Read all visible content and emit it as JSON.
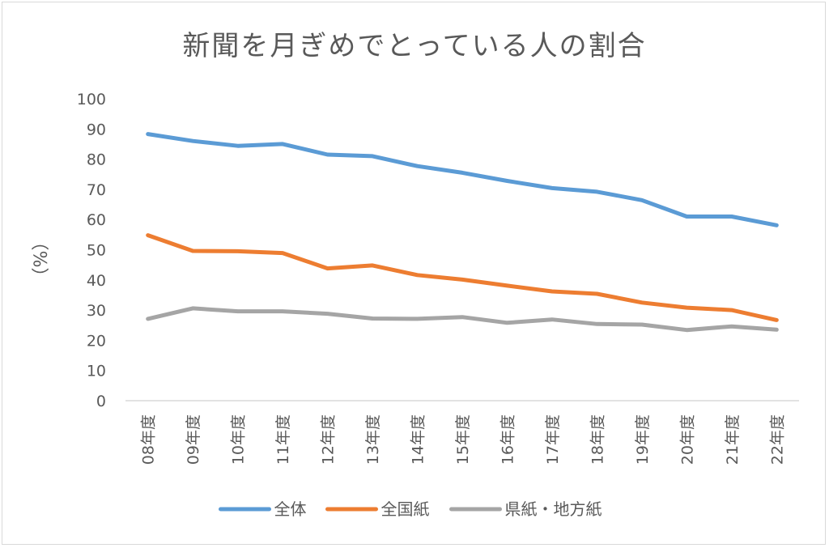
{
  "chart_data": {
    "type": "line",
    "title": "新聞を月ぎめでとっている人の割合",
    "ylabel": "（%）",
    "xlabel": "",
    "ylim": [
      0,
      100
    ],
    "yticks": [
      0,
      10,
      20,
      30,
      40,
      50,
      60,
      70,
      80,
      90,
      100
    ],
    "grid": false,
    "legend": "bottom",
    "categories": [
      "08年度",
      "09年度",
      "10年度",
      "11年度",
      "12年度",
      "13年度",
      "14年度",
      "15年度",
      "16年度",
      "17年度",
      "18年度",
      "19年度",
      "20年度",
      "21年度",
      "22年度"
    ],
    "series": [
      {
        "name": "全体",
        "color": "#5b9bd5",
        "values": [
          88.3,
          86.0,
          84.4,
          85.0,
          81.5,
          81.0,
          77.7,
          75.5,
          72.8,
          70.4,
          69.2,
          66.4,
          61.0,
          61.0,
          58.1
        ]
      },
      {
        "name": "全国紙",
        "color": "#ed7d31",
        "values": [
          54.8,
          49.6,
          49.5,
          48.9,
          43.8,
          44.8,
          41.6,
          40.1,
          38.1,
          36.2,
          35.4,
          32.5,
          30.8,
          30.0,
          26.7
        ]
      },
      {
        "name": "県紙・地方紙",
        "color": "#a5a5a5",
        "values": [
          27.1,
          30.6,
          29.6,
          29.6,
          28.8,
          27.2,
          27.1,
          27.7,
          25.8,
          26.9,
          25.4,
          25.2,
          23.4,
          24.6,
          23.5
        ]
      }
    ]
  }
}
